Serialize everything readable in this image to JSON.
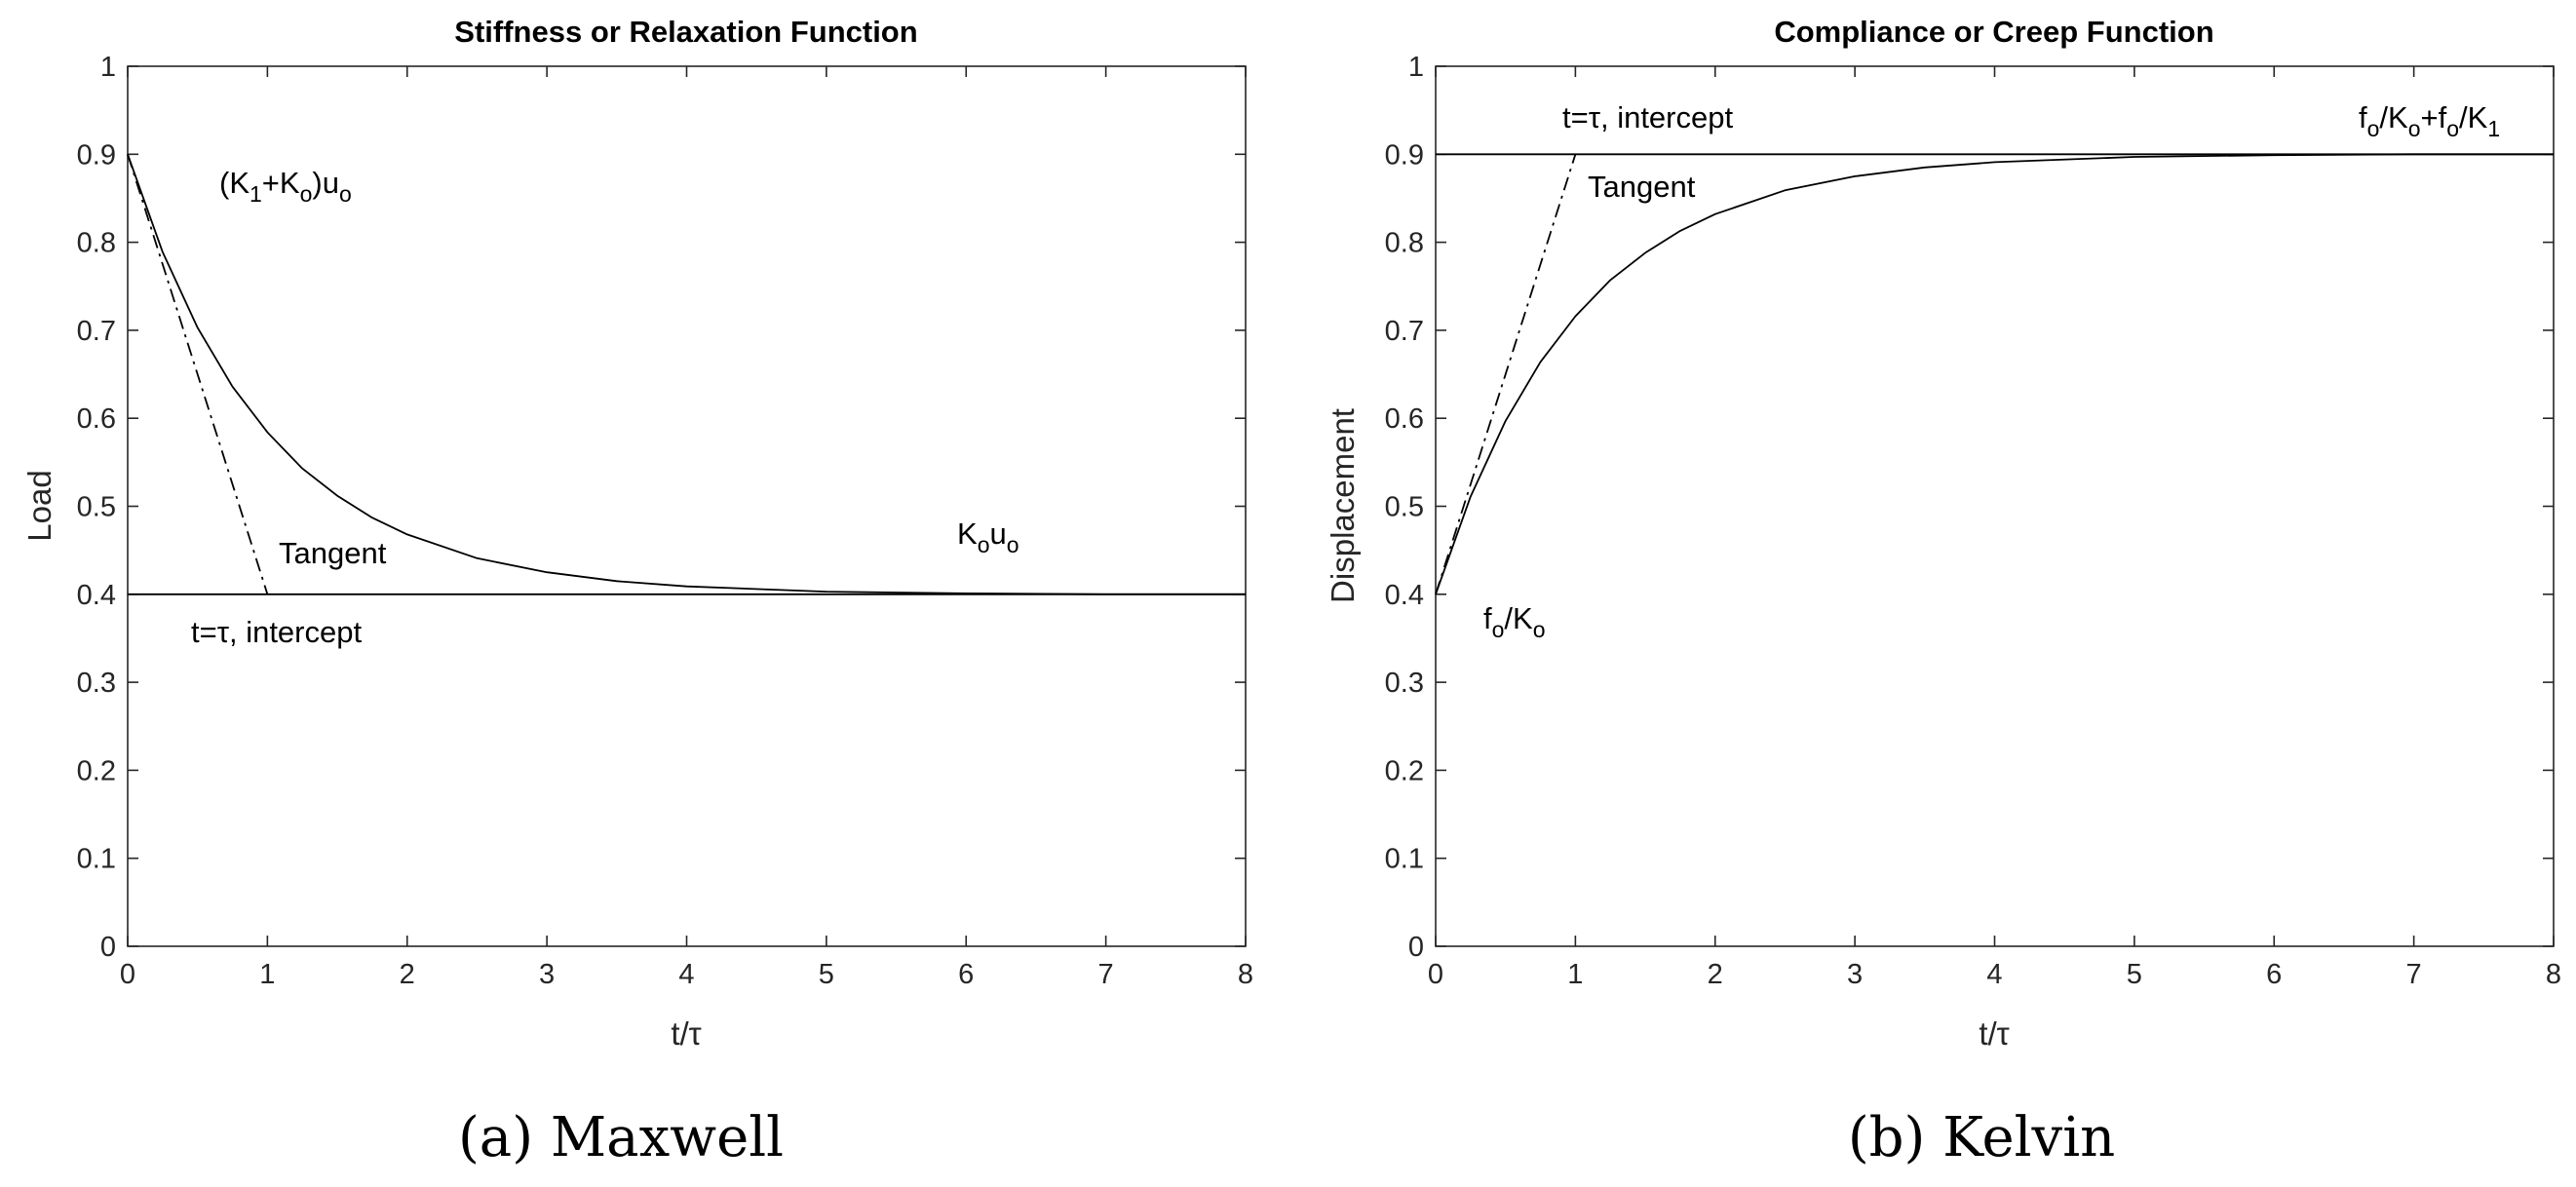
{
  "chart_data": [
    {
      "type": "line",
      "title": "Stiffness or Relaxation Function",
      "xlabel": "t/τ",
      "ylabel": "Load",
      "xlim": [
        0,
        8
      ],
      "ylim": [
        0,
        1
      ],
      "xticks": [
        "0",
        "1",
        "2",
        "3",
        "4",
        "5",
        "6",
        "7",
        "8"
      ],
      "yticks": [
        "0",
        "0.1",
        "0.2",
        "0.3",
        "0.4",
        "0.5",
        "0.6",
        "0.7",
        "0.8",
        "0.9",
        "1"
      ],
      "grid": false,
      "caption": "(a)  Maxwell",
      "series": [
        {
          "style": "solid",
          "x": [
            0,
            0.25,
            0.5,
            0.75,
            1,
            1.25,
            1.5,
            1.75,
            2,
            2.5,
            3,
            3.5,
            4,
            5,
            6,
            7,
            8
          ],
          "y": [
            0.9,
            0.789,
            0.703,
            0.636,
            0.584,
            0.543,
            0.512,
            0.487,
            0.468,
            0.441,
            0.425,
            0.415,
            0.409,
            0.403,
            0.401,
            0.4,
            0.4
          ]
        },
        {
          "style": "dashdot",
          "x": [
            0,
            1
          ],
          "y": [
            0.9,
            0.4
          ]
        },
        {
          "style": "solid",
          "x": [
            0,
            8
          ],
          "y": [
            0.4,
            0.4
          ]
        }
      ],
      "annotations": [
        {
          "text": "(K1+Ko)uo",
          "x": 0.65,
          "y": 0.845
        },
        {
          "text": "Tangent",
          "x": 1.05,
          "y": 0.43
        },
        {
          "text": "Kou o",
          "x": 6.0,
          "y": 0.445
        },
        {
          "text": "t=τ, intercept",
          "x": 0.45,
          "y": 0.355
        }
      ]
    },
    {
      "type": "line",
      "title": "Compliance or Creep Function",
      "xlabel": "t/τ",
      "ylabel": "Displacement",
      "xlim": [
        0,
        8
      ],
      "ylim": [
        0,
        1
      ],
      "xticks": [
        "0",
        "1",
        "2",
        "3",
        "4",
        "5",
        "6",
        "7",
        "8"
      ],
      "yticks": [
        "0",
        "0.1",
        "0.2",
        "0.3",
        "0.4",
        "0.5",
        "0.6",
        "0.7",
        "0.8",
        "0.9",
        "1"
      ],
      "grid": false,
      "caption": "(b)  Kelvin",
      "series": [
        {
          "style": "solid",
          "x": [
            0,
            0.25,
            0.5,
            0.75,
            1,
            1.25,
            1.5,
            1.75,
            2,
            2.5,
            3,
            3.5,
            4,
            5,
            6,
            7,
            8
          ],
          "y": [
            0.4,
            0.511,
            0.597,
            0.664,
            0.716,
            0.757,
            0.788,
            0.813,
            0.832,
            0.859,
            0.875,
            0.885,
            0.891,
            0.897,
            0.899,
            0.9,
            0.9
          ]
        },
        {
          "style": "dashdot",
          "x": [
            0,
            1
          ],
          "y": [
            0.4,
            0.9
          ]
        },
        {
          "style": "solid",
          "x": [
            0,
            8
          ],
          "y": [
            0.9,
            0.9
          ]
        }
      ],
      "annotations": [
        {
          "text": "t=τ, intercept",
          "x": 0.9,
          "y": 0.93
        },
        {
          "text": "Tangent",
          "x": 1.1,
          "y": 0.855
        },
        {
          "text": "fo/Ko+fo/K1",
          "x": 6.5,
          "y": 0.93
        },
        {
          "text": "fo/Ko",
          "x": 0.35,
          "y": 0.365
        }
      ]
    }
  ]
}
